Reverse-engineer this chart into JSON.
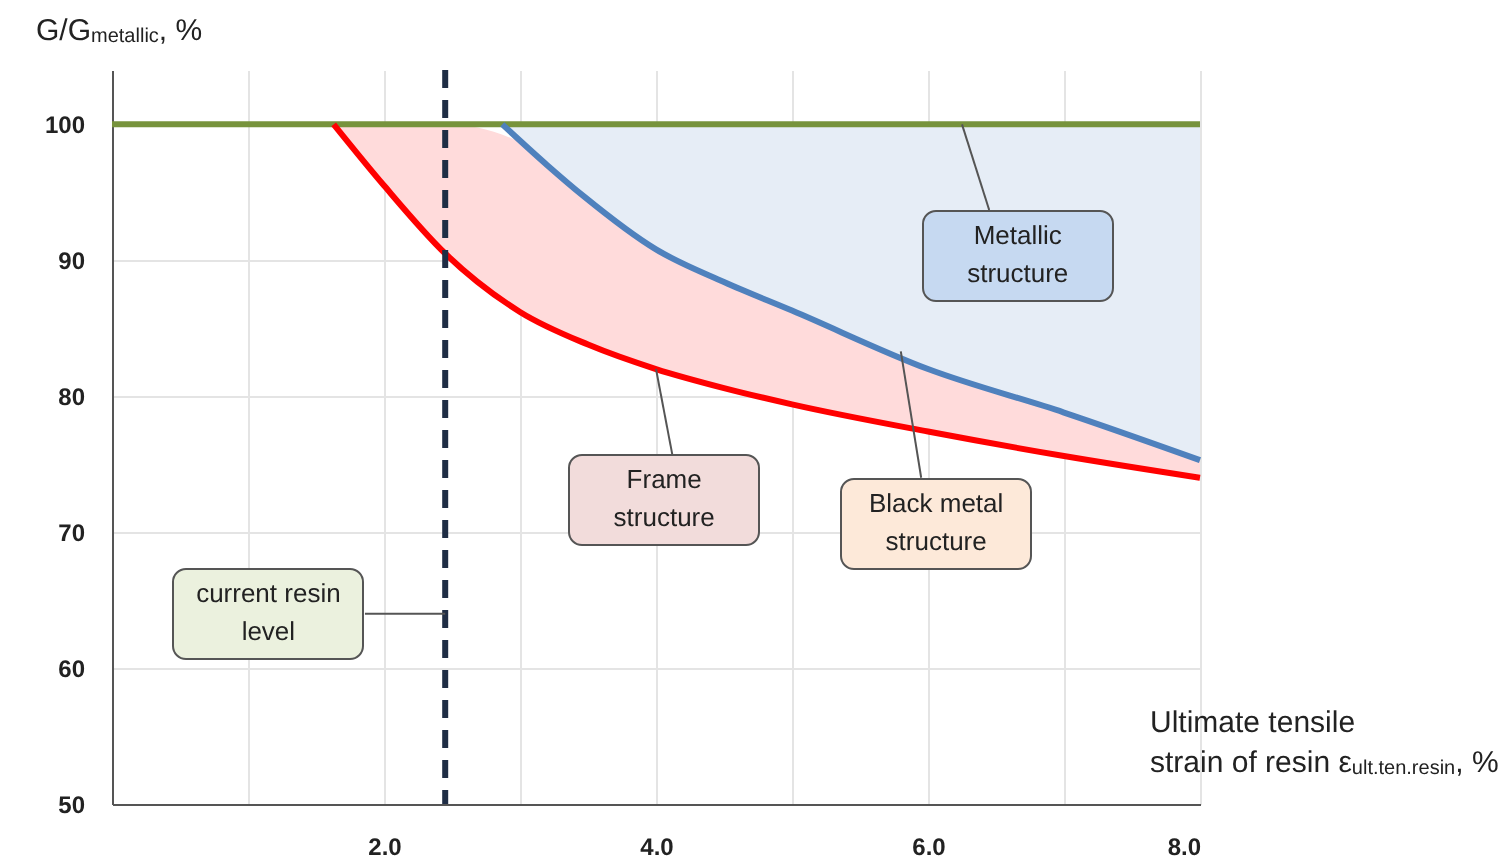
{
  "chart_data": {
    "type": "line",
    "xlabel": "Ultimate tensile\nstrain of resin ε$_{ult.ten.resin}$, %",
    "ylabel": "G/G$_{metallic}$, %",
    "xlim": [
      0,
      8
    ],
    "ylim": [
      50,
      104
    ],
    "xticks": [
      {
        "value": 1,
        "label": null
      },
      {
        "value": 2,
        "label": "2.0"
      },
      {
        "value": 3,
        "label": null
      },
      {
        "value": 4,
        "label": "4.0"
      },
      {
        "value": 5,
        "label": null
      },
      {
        "value": 6,
        "label": "6.0"
      },
      {
        "value": 7,
        "label": null
      },
      {
        "value": 8,
        "label": "8.0"
      }
    ],
    "yticks": [
      50,
      60,
      70,
      80,
      90,
      100
    ],
    "grid": true,
    "series": [
      {
        "color": "#77933c",
        "x": [
          0,
          8
        ],
        "values": [
          100,
          100
        ]
      },
      {
        "color": "#ff0000",
        "x": [
          1.63,
          2.0,
          2.45,
          3.0,
          3.5,
          4.0,
          4.5,
          5.0,
          6.0,
          7.0,
          8.0
        ],
        "values": [
          100,
          95.5,
          90.5,
          86.2,
          83.8,
          82,
          80.6,
          79.4,
          77.4,
          75.6,
          74
        ],
        "lower": [
          100,
          95.5,
          90.5,
          86.2,
          83.8,
          82,
          80.6,
          79.4,
          77.4,
          75.6,
          74
        ],
        "upper": [
          100,
          100,
          100,
          98.7,
          94.5,
          90.8,
          88.4,
          86.3,
          82,
          78.8,
          75.3
        ]
      },
      {
        "color": "#4f81bd",
        "x": [
          2.87,
          3.2,
          3.47,
          4.0,
          4.5,
          5.0,
          6.0,
          7.0,
          8.0
        ],
        "values": [
          100,
          97,
          94.7,
          90.8,
          88.4,
          86.3,
          82,
          78.8,
          75.3
        ],
        "lower": [
          100,
          97,
          94.7,
          90.8,
          88.4,
          86.3,
          82,
          78.8,
          75.3
        ],
        "upper": [
          100,
          100,
          100,
          100,
          100,
          100,
          100,
          100,
          100
        ]
      }
    ],
    "ref_lines": [
      {
        "axis": "x",
        "value": 2.45,
        "color": "#1f2d45",
        "line_style": "dashed"
      }
    ],
    "annotations": [
      {
        "text": "Metallic structure",
        "x": 6.25,
        "y": 100
      },
      {
        "text": "Frame structure",
        "x": 4.0,
        "y": 82
      },
      {
        "text": "Black metal structure",
        "x": 5.8,
        "y": 83.3
      },
      {
        "text": "current resin level",
        "x": 2.45,
        "y": 64
      }
    ]
  }
}
